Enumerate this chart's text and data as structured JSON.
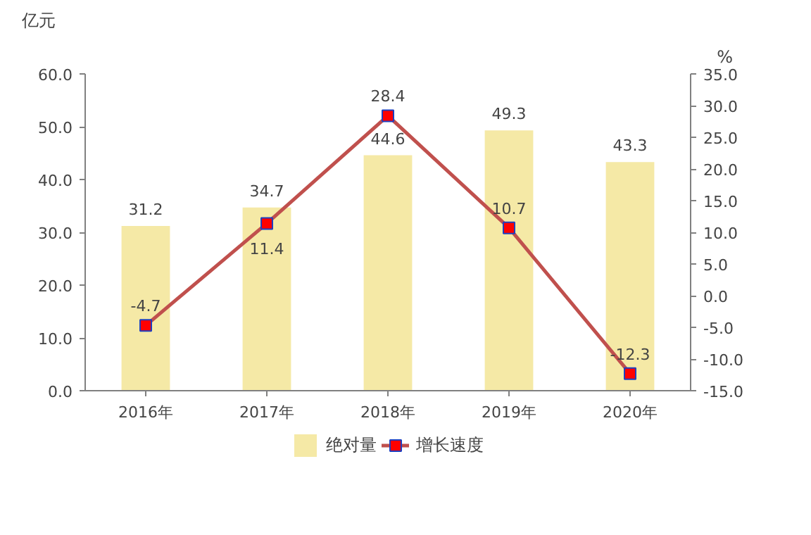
{
  "chart_data": {
    "type": "bar",
    "categories": [
      "2016年",
      "2017年",
      "2018年",
      "2019年",
      "2020年"
    ],
    "ylabel": "亿元",
    "y2label": "%",
    "series": [
      {
        "name": "绝对量",
        "color": "#f5e9a6",
        "values": [
          31.2,
          34.7,
          44.6,
          49.3,
          43.3
        ]
      },
      {
        "name": "增长速度",
        "type": "line",
        "axis": "y2",
        "color": "#c0504d",
        "values": [
          -4.7,
          11.4,
          28.4,
          10.7,
          -12.3
        ]
      }
    ],
    "ylim": [
      0,
      60
    ],
    "yticks": [
      {
        "value": 0,
        "label": "0.0"
      },
      {
        "value": 10,
        "label": "10.0"
      },
      {
        "value": 20,
        "label": "20.0"
      },
      {
        "value": 30,
        "label": "30.0"
      },
      {
        "value": 40,
        "label": "40.0"
      },
      {
        "value": 50,
        "label": "50.0"
      },
      {
        "value": 60,
        "label": "60.0"
      }
    ],
    "y2lim": [
      -15,
      35
    ],
    "y2ticks": [
      {
        "value": -15,
        "label": "-15.0"
      },
      {
        "value": -10,
        "label": "-10.0"
      },
      {
        "value": -5,
        "label": "-5.0"
      },
      {
        "value": 0,
        "label": "0.0"
      },
      {
        "value": 5,
        "label": "5.0"
      },
      {
        "value": 10,
        "label": "10.0"
      },
      {
        "value": 15,
        "label": "15.0"
      },
      {
        "value": 20,
        "label": "20.0"
      },
      {
        "value": 25,
        "label": "25.0"
      },
      {
        "value": 30,
        "label": "30.0"
      },
      {
        "value": 35,
        "label": "35.0"
      }
    ],
    "data_labels": true,
    "legend": "bottom",
    "grid": false,
    "marker": "square",
    "line_style": "solid"
  }
}
